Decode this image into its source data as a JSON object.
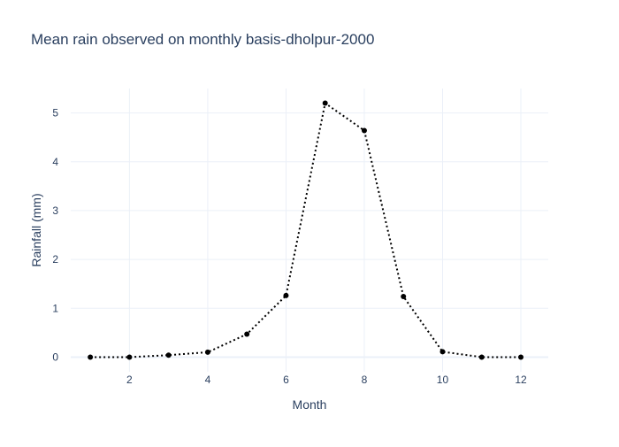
{
  "chart_data": {
    "type": "line",
    "title": "Mean rain observed on monthly basis-dholpur-2000",
    "xlabel": "Month",
    "ylabel": "Rainfall (mm)",
    "x": [
      1,
      2,
      3,
      4,
      5,
      6,
      7,
      8,
      9,
      10,
      11,
      12
    ],
    "series": [
      {
        "values": [
          0.0,
          0.0,
          0.04,
          0.1,
          0.47,
          1.26,
          5.2,
          4.64,
          1.24,
          0.11,
          0.0,
          0.0
        ],
        "color": "#000000",
        "line_style": "dotted",
        "markers": true
      }
    ],
    "xlim": [
      0.5,
      12.7
    ],
    "ylim": [
      -0.3,
      5.5
    ],
    "xticks": [
      2,
      4,
      6,
      8,
      10,
      12
    ],
    "yticks": [
      0,
      1,
      2,
      3,
      4,
      5
    ],
    "grid": true,
    "legend": "none",
    "colors": {
      "text": "#2a3f5f",
      "grid": "#ebf0f8",
      "background": "#ffffff",
      "series": "#000000"
    }
  }
}
